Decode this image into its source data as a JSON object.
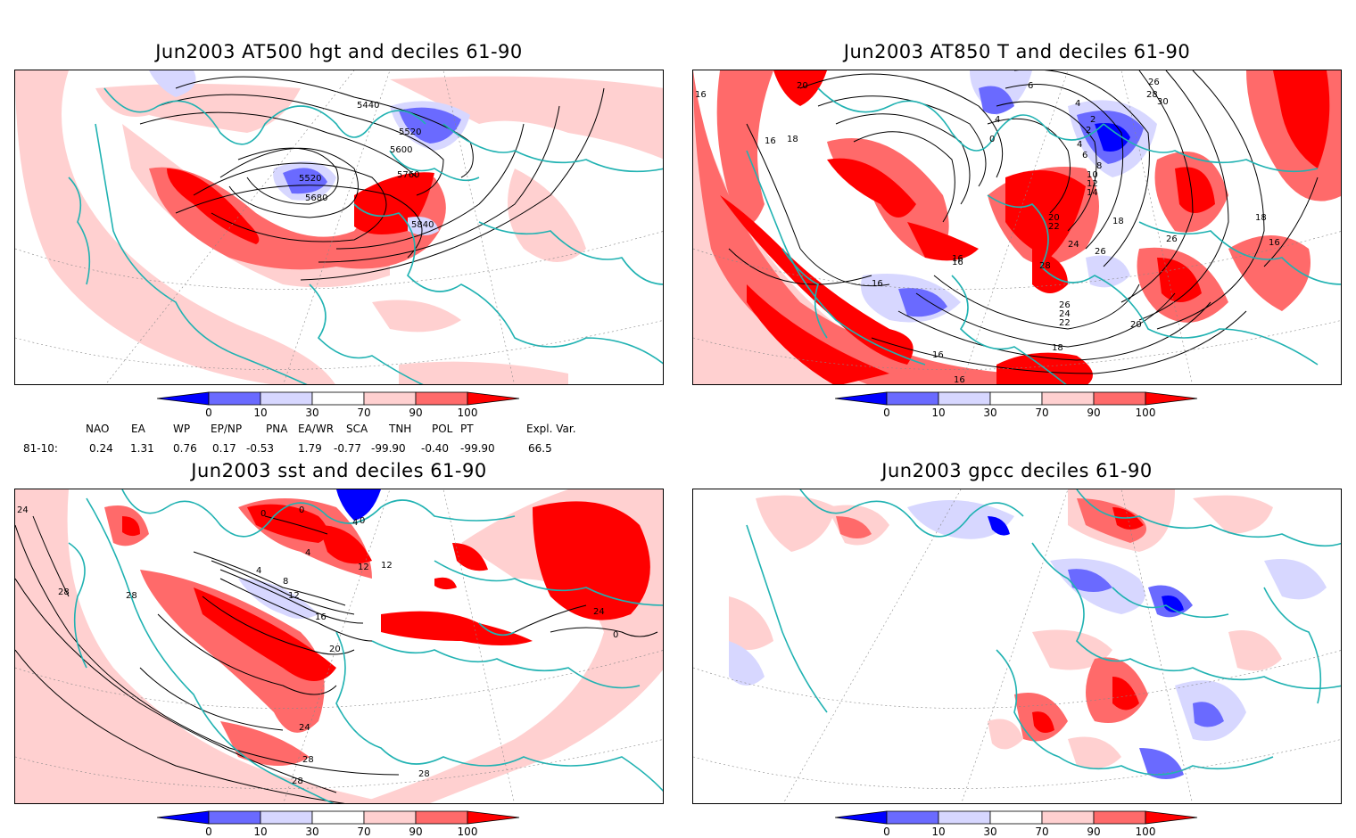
{
  "panels": [
    {
      "id": "p1",
      "title": "Jun2003 AT500 hgt and deciles 61-90",
      "contour_labels": [
        "5440",
        "5520",
        "5520",
        "5600",
        "5680",
        "5760",
        "5840"
      ]
    },
    {
      "id": "p2",
      "title": "Jun2003 AT850 T and deciles 61-90",
      "contour_labels": [
        "20",
        "6",
        "4",
        "4",
        "2",
        "0",
        "2",
        "4",
        "6",
        "8",
        "10",
        "12",
        "14",
        "16",
        "16",
        "18",
        "18",
        "20",
        "22",
        "24",
        "26",
        "26",
        "24",
        "22",
        "28",
        "26",
        "28",
        "30",
        "16",
        "16",
        "16",
        "18",
        "16",
        "18",
        "20",
        "26",
        "16",
        "16"
      ]
    },
    {
      "id": "p3",
      "title": "Jun2003 sst and deciles 61-90",
      "contour_labels": [
        "24",
        "28",
        "28",
        "0",
        "0",
        "4",
        "4",
        "8",
        "12",
        "12",
        "16",
        "20",
        "24",
        "24",
        "28",
        "28",
        "28",
        "4",
        "0",
        "0",
        "12"
      ]
    },
    {
      "id": "p4",
      "title": "Jun2003 gpcc deciles 61-90",
      "contour_labels": []
    }
  ],
  "colorbar": {
    "labels": [
      "0",
      "10",
      "30",
      "70",
      "90",
      "100"
    ],
    "colors": [
      "#0000ff",
      "#6a6aff",
      "#d7d7ff",
      "#ffffff",
      "#ffd0d0",
      "#ff6a6a",
      "#ff0000"
    ]
  },
  "indices": {
    "headers": [
      "NAO",
      "EA",
      "WP",
      "EP/NP",
      "PNA",
      "EA/WR",
      "SCA",
      "TNH",
      "POL",
      "PT",
      "Expl. Var."
    ],
    "row_label": "81-10:",
    "values": [
      "0.24",
      "1.31",
      "0.76",
      "0.17",
      "-0.53",
      "1.79",
      "-0.77",
      "-99.90",
      "-0.40",
      "-99.90",
      "66.5"
    ]
  },
  "colors": {
    "coast": "#20b2b2",
    "red_strong": "#ff0000",
    "red_mid": "#ff6a6a",
    "red_light": "#ffd0d0",
    "blue_strong": "#0000ff",
    "blue_mid": "#6a6aff",
    "blue_light": "#d7d7ff"
  }
}
